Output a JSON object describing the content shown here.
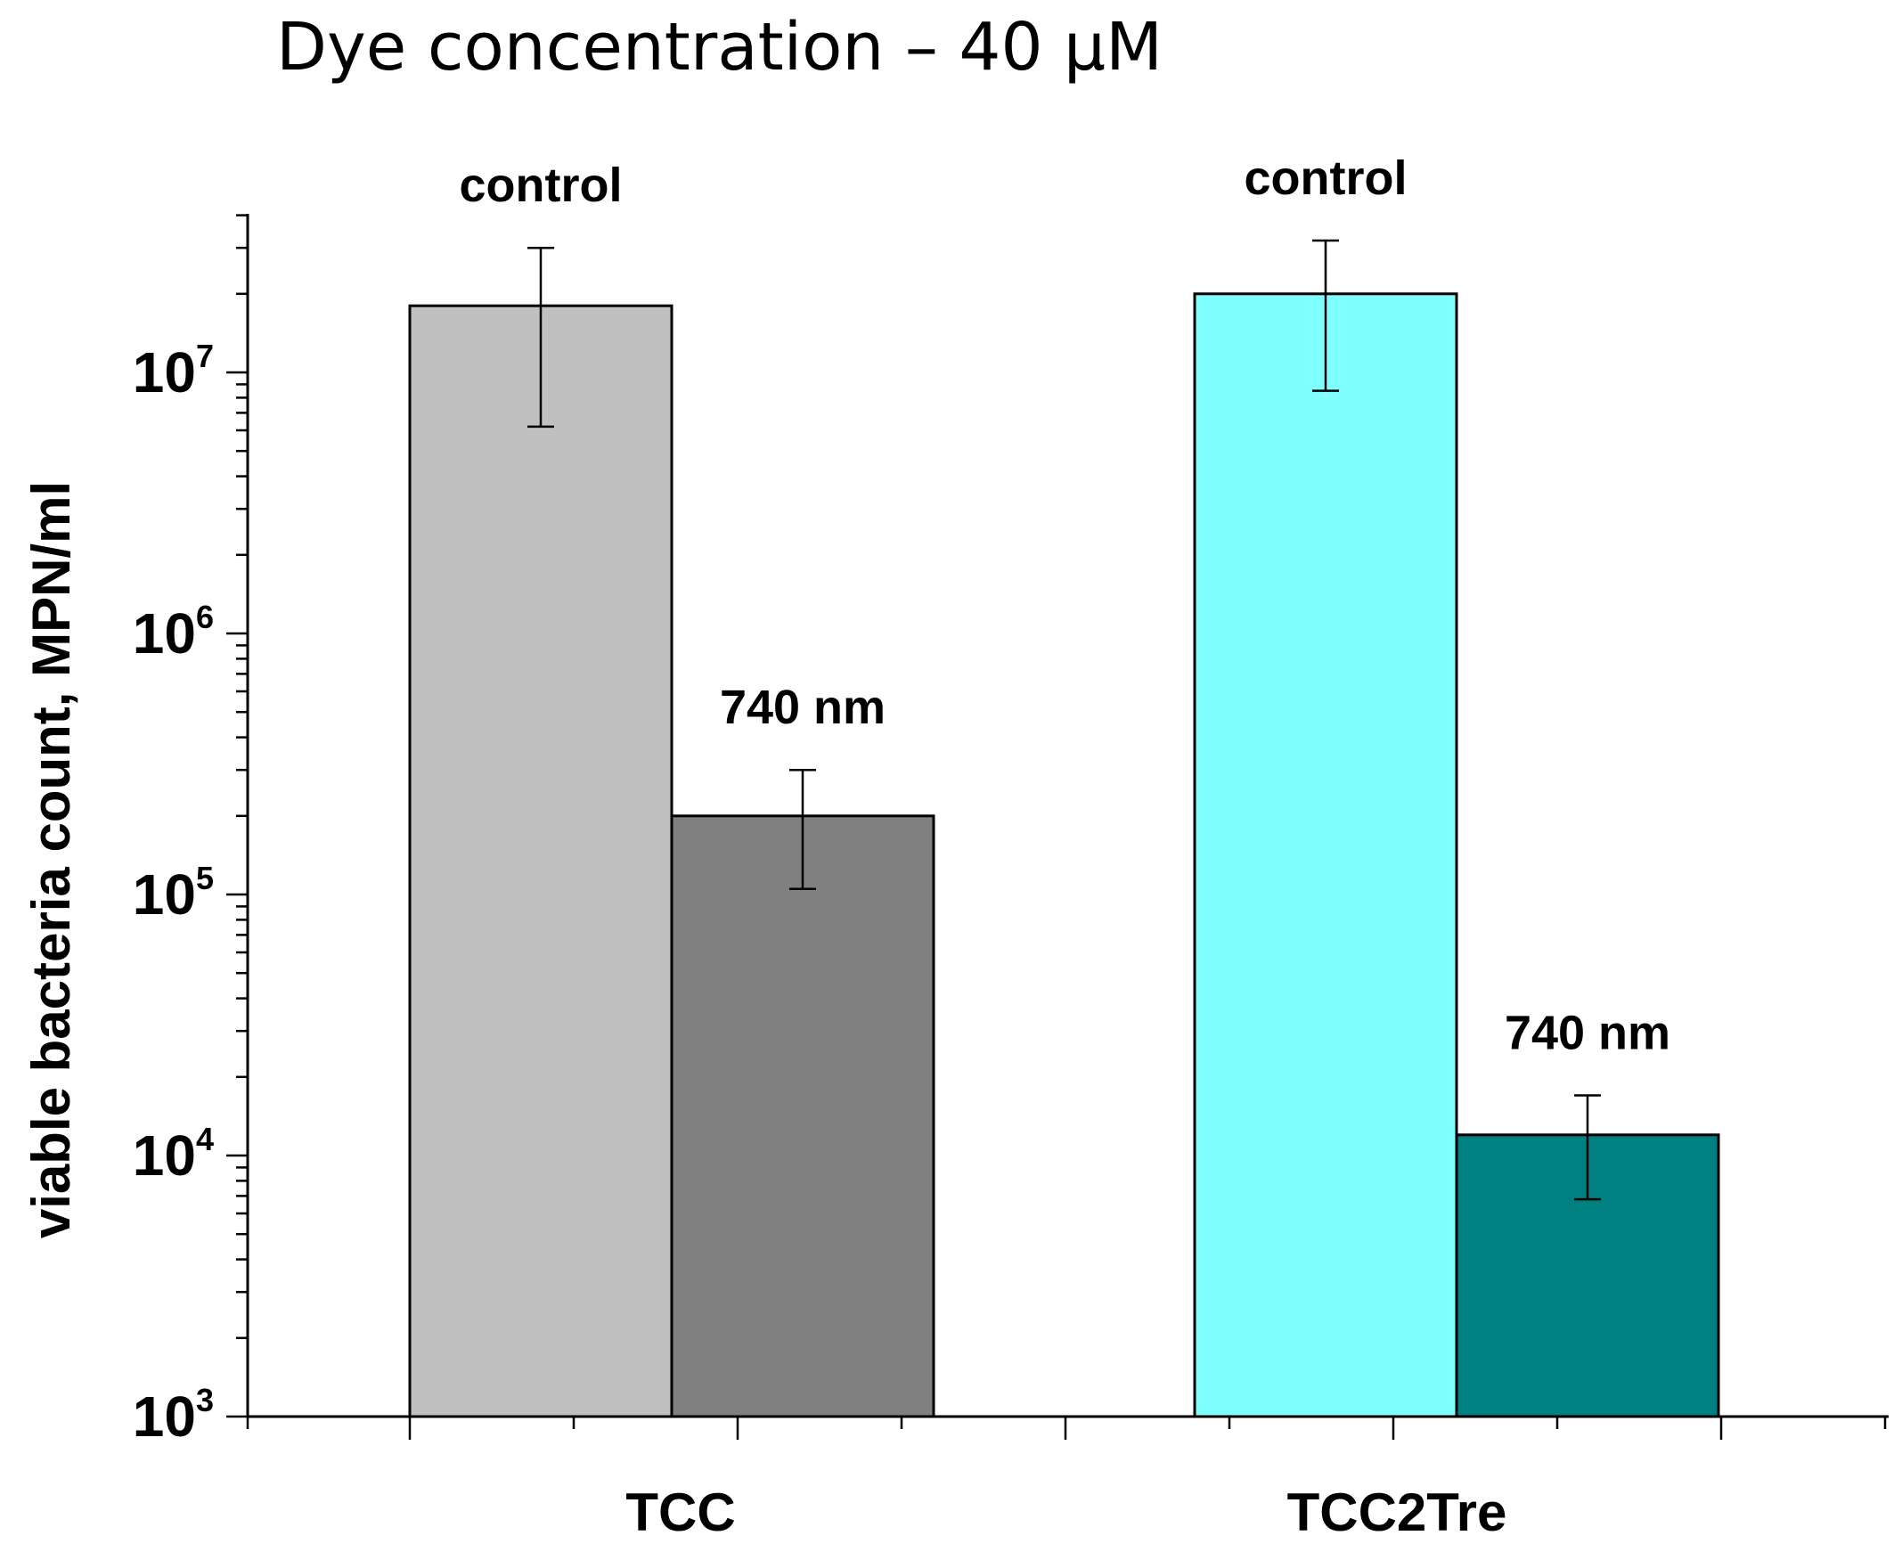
{
  "chart_data": {
    "type": "bar",
    "title": "Dye concentration – 40 µM",
    "xlabel": "",
    "ylabel": "viable bacteria count, MPN/ml",
    "yscale": "log",
    "ylim": [
      1000,
      40000000
    ],
    "ytick_labels": [
      {
        "base": "10",
        "exp": "3",
        "value": 1000
      },
      {
        "base": "10",
        "exp": "4",
        "value": 10000
      },
      {
        "base": "10",
        "exp": "5",
        "value": 100000
      },
      {
        "base": "10",
        "exp": "6",
        "value": 1000000
      },
      {
        "base": "10",
        "exp": "7",
        "value": 10000000
      }
    ],
    "categories": [
      "TCC",
      "TCC2Tre"
    ],
    "groups": [
      {
        "category": "TCC",
        "bars": [
          {
            "label": "control",
            "value": 18000000,
            "err_low": 6200000,
            "err_high": 30000000,
            "color": "#c0c0c0"
          },
          {
            "label": "740 nm",
            "value": 200000,
            "err_low": 105000,
            "err_high": 300000,
            "color": "#808080"
          }
        ]
      },
      {
        "category": "TCC2Tre",
        "bars": [
          {
            "label": "control",
            "value": 20000000,
            "err_low": 8500000,
            "err_high": 32000000,
            "color": "#80ffff"
          },
          {
            "label": "740 nm",
            "value": 12000,
            "err_low": 6800,
            "err_high": 17000,
            "color": "#008080"
          }
        ]
      }
    ],
    "grid": false,
    "legend": "none"
  }
}
